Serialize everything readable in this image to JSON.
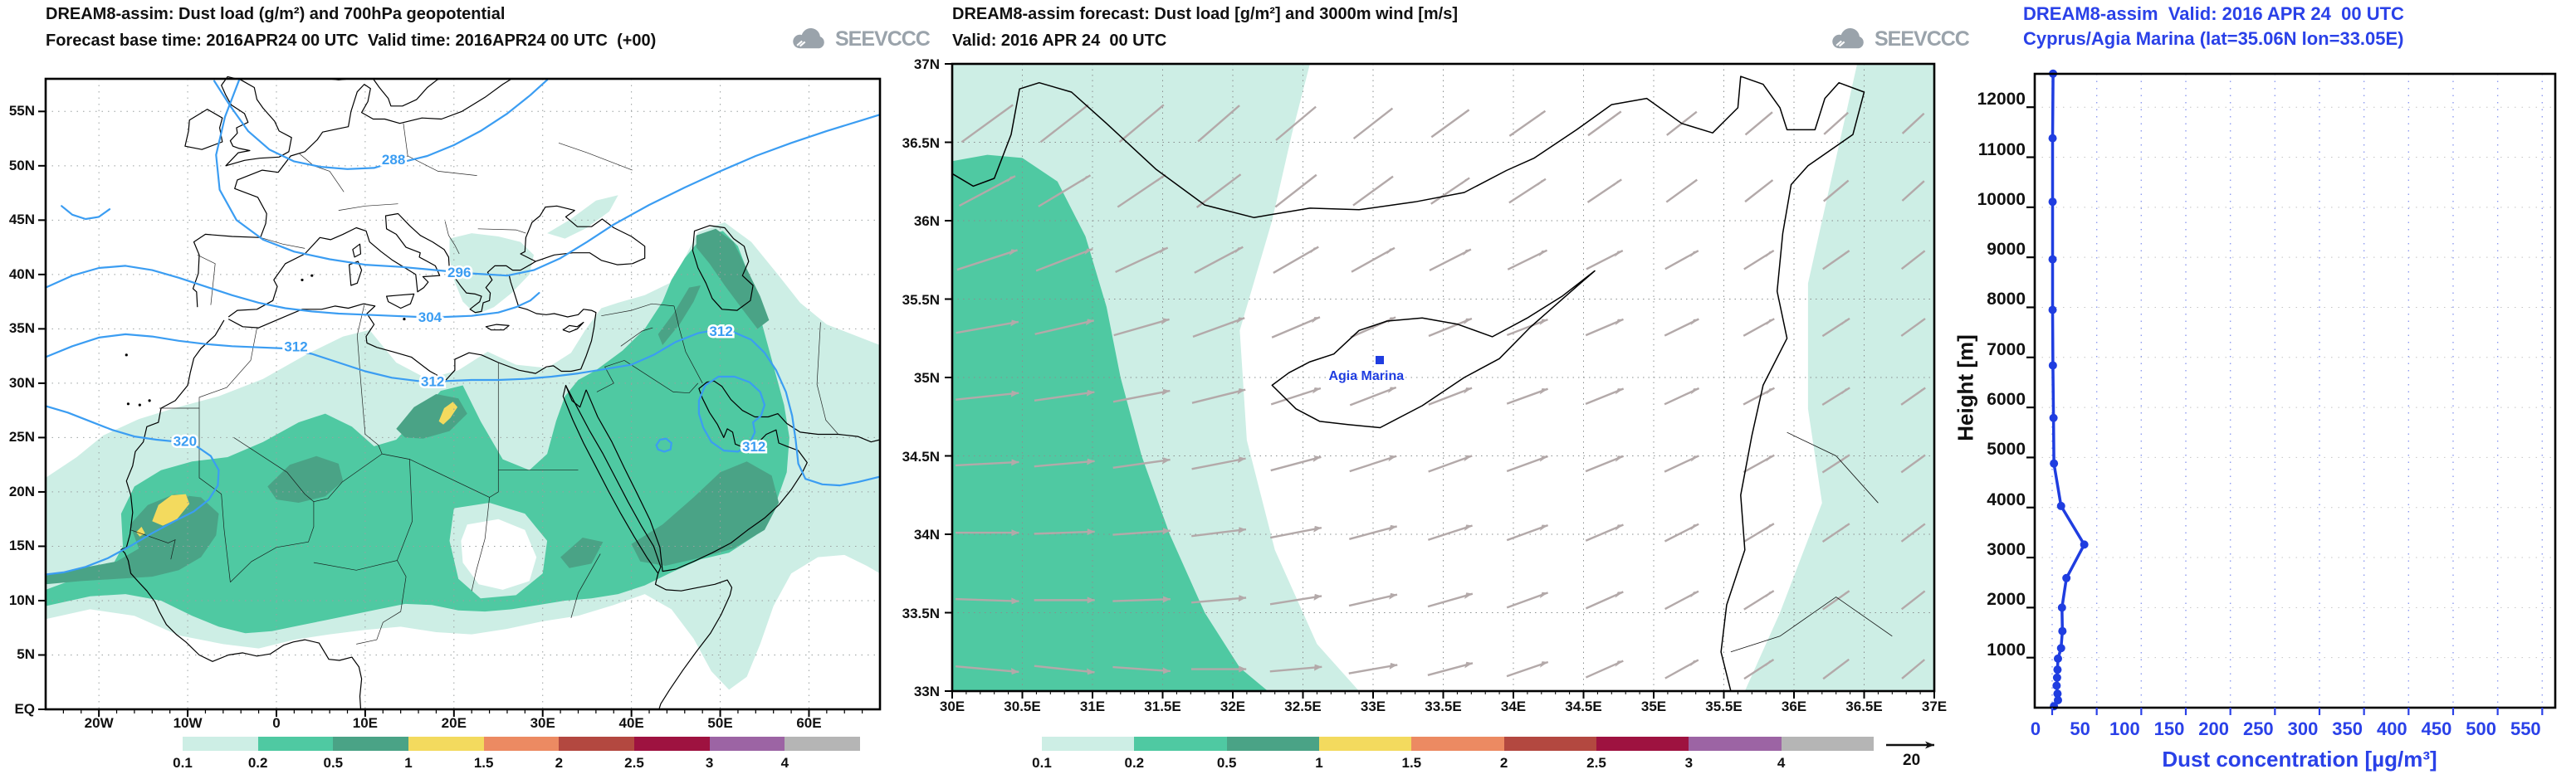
{
  "panels": {
    "left": {
      "title1": "DREAM8-assim: Dust load (g/m²) and 700hPa geopotential",
      "title2": "Forecast base time: 2016APR24 00 UTC  Valid time: 2016APR24 00 UTC  (+00)",
      "logo": "SEEVCCC",
      "x_ticks": [
        "20W",
        "10W",
        "0",
        "10E",
        "20E",
        "30E",
        "40E",
        "50E",
        "60E"
      ],
      "x_tick_lons": [
        -20,
        -10,
        0,
        10,
        20,
        30,
        40,
        50,
        60
      ],
      "y_ticks": [
        "EQ",
        "5N",
        "10N",
        "15N",
        "20N",
        "25N",
        "30N",
        "35N",
        "40N",
        "45N",
        "50N",
        "55N"
      ],
      "y_tick_lats": [
        0,
        5,
        10,
        15,
        20,
        25,
        30,
        35,
        40,
        45,
        50,
        55
      ],
      "contour_labels": [
        {
          "text": "288",
          "lon": 13.2,
          "lat": 50.6
        },
        {
          "text": "296",
          "lon": 20.6,
          "lat": 40.2
        },
        {
          "text": "304",
          "lon": 17.3,
          "lat": 36.1
        },
        {
          "text": "312",
          "lon": 2.2,
          "lat": 33.4
        },
        {
          "text": "312",
          "lon": 17.6,
          "lat": 30.2
        },
        {
          "text": "312",
          "lon": 50.1,
          "lat": 34.8
        },
        {
          "text": "312",
          "lon": 53.8,
          "lat": 24.2
        },
        {
          "text": "320",
          "lon": -10.3,
          "lat": 24.7
        }
      ],
      "colorbar": {
        "labels": [
          "0.1",
          "0.2",
          "0.5",
          "1",
          "1.5",
          "2",
          "2.5",
          "3",
          "4"
        ],
        "colors": [
          "#cdeee5",
          "#4fc9a2",
          "#4aa386",
          "#f3da5e",
          "#ec8a62",
          "#b34840",
          "#9e1240",
          "#9c64a4",
          "#b5b5b5"
        ]
      }
    },
    "middle": {
      "title1": "DREAM8-assim forecast: Dust load [g/m²] and 3000m wind [m/s]",
      "title2": "Valid: 2016 APR 24  00 UTC",
      "logo": "SEEVCCC",
      "x_ticks": [
        "30E",
        "30.5E",
        "31E",
        "31.5E",
        "32E",
        "32.5E",
        "33E",
        "33.5E",
        "34E",
        "34.5E",
        "35E",
        "35.5E",
        "36E",
        "36.5E",
        "37E"
      ],
      "x_tick_lons": [
        30,
        30.5,
        31,
        31.5,
        32,
        32.5,
        33,
        33.5,
        34,
        34.5,
        35,
        35.5,
        36,
        36.5,
        37
      ],
      "y_ticks": [
        "33N",
        "33.5N",
        "34N",
        "34.5N",
        "35N",
        "35.5N",
        "36N",
        "36.5N",
        "37N"
      ],
      "y_tick_lats": [
        33,
        33.5,
        34,
        34.5,
        35,
        35.5,
        36,
        36.5,
        37
      ],
      "station": {
        "label": "Agia Marina",
        "lon": 33.05,
        "lat": 35.06
      },
      "wind_ref": "20",
      "wind_lons": [
        30.25,
        30.8,
        31.35,
        31.9,
        32.45,
        33.0,
        33.55,
        34.1,
        34.65,
        35.2,
        35.75,
        36.3,
        36.85
      ],
      "wind_rows": [
        {
          "lat": 36.62,
          "angles": [
            36,
            38,
            40,
            41,
            40,
            38,
            36,
            35,
            36,
            38,
            40,
            42,
            43
          ]
        },
        {
          "lat": 36.19,
          "angles": [
            28,
            31,
            34,
            37,
            38,
            36,
            34,
            33,
            34,
            36,
            38,
            40,
            42
          ]
        },
        {
          "lat": 35.75,
          "angles": [
            18,
            21,
            25,
            28,
            30,
            29,
            27,
            26,
            27,
            29,
            32,
            35,
            38
          ]
        },
        {
          "lat": 35.32,
          "angles": [
            10,
            13,
            16,
            20,
            23,
            24,
            22,
            21,
            23,
            26,
            29,
            33,
            36
          ]
        },
        {
          "lat": 34.88,
          "angles": [
            6,
            8,
            11,
            14,
            18,
            21,
            21,
            20,
            22,
            25,
            28,
            32,
            35
          ]
        },
        {
          "lat": 34.45,
          "angles": [
            3,
            5,
            8,
            11,
            15,
            18,
            20,
            20,
            22,
            25,
            29,
            33,
            36
          ]
        },
        {
          "lat": 34.01,
          "angles": [
            0,
            2,
            4,
            7,
            11,
            15,
            18,
            20,
            23,
            27,
            31,
            34,
            37
          ]
        },
        {
          "lat": 33.58,
          "angles": [
            -2,
            0,
            2,
            5,
            9,
            13,
            16,
            20,
            24,
            28,
            32,
            35,
            38
          ]
        },
        {
          "lat": 33.14,
          "angles": [
            -5,
            -6,
            -4,
            0,
            5,
            10,
            15,
            19,
            24,
            29,
            33,
            37,
            40
          ]
        }
      ],
      "colorbar": {
        "labels": [
          "0.1",
          "0.2",
          "0.5",
          "1",
          "1.5",
          "2",
          "2.5",
          "3",
          "4"
        ],
        "colors": [
          "#cdeee5",
          "#4fc9a2",
          "#4aa386",
          "#f3da5e",
          "#ec8a62",
          "#b34840",
          "#9e1240",
          "#9c64a4",
          "#b5b5b5"
        ]
      }
    },
    "right": {
      "title1": "DREAM8-assim  Valid: 2016 APR 24  00 UTC",
      "title2": "Cyprus/Agia Marina (lat=35.06N lon=33.05E)",
      "ylabel": "Height [m]",
      "xlabel": "Dust concentration [µg/m³]",
      "x_ticks": [
        "0",
        "50",
        "100",
        "150",
        "200",
        "250",
        "300",
        "350",
        "400",
        "450",
        "500",
        "550"
      ],
      "x_tick_vals": [
        0,
        50,
        100,
        150,
        200,
        250,
        300,
        350,
        400,
        450,
        500,
        550
      ],
      "y_ticks": [
        "1000",
        "2000",
        "3000",
        "4000",
        "5000",
        "6000",
        "7000",
        "8000",
        "9000",
        "10000",
        "11000",
        "12000"
      ],
      "y_tick_vals": [
        1000,
        2000,
        3000,
        4000,
        5000,
        6000,
        7000,
        8000,
        9000,
        10000,
        11000,
        12000
      ]
    }
  },
  "chart_data": [
    {
      "type": "map",
      "title": "DREAM8-assim: Dust load (g/m²) and 700hPa geopotential",
      "region": "Europe / North Africa / Middle East",
      "lon_range": [
        -26,
        68
      ],
      "lat_range": [
        0,
        58
      ],
      "shading_variable": "dust load (g/m²)",
      "shading_levels": [
        0.1,
        0.2,
        0.5,
        1,
        1.5,
        2,
        2.5,
        3,
        4
      ],
      "contour_variable": "700hPa geopotential",
      "contour_values": [
        288,
        296,
        304,
        312,
        320
      ],
      "grid": "dotted, 10 deg lon x 5 deg lat"
    },
    {
      "type": "map",
      "title": "DREAM8-assim forecast: Dust load [g/m²] and 3000m wind [m/s]",
      "region": "Cyprus / Eastern Mediterranean",
      "lon_range": [
        30,
        37
      ],
      "lat_range": [
        33,
        37
      ],
      "shading_variable": "dust load [g/m²]",
      "shading_levels": [
        0.1,
        0.2,
        0.5,
        1,
        1.5,
        2,
        2.5,
        3,
        4
      ],
      "wind_reference_ms": 20,
      "station": "Agia Marina"
    },
    {
      "type": "line",
      "title": "DREAM8-assim Valid: 2016 APR 24 00 UTC, Cyprus/Agia Marina",
      "xlabel": "Dust concentration [µg/m³]",
      "ylabel": "Height [m]",
      "xlim": [
        0,
        550
      ],
      "ylim": [
        0,
        12700
      ],
      "legend": "none",
      "grid": "dotted vertical every 50 µg/m³, dotted horizontal every 1000 m",
      "points_conc_height": [
        [
          1,
          12670
        ],
        [
          0.5,
          11380
        ],
        [
          0.5,
          10110
        ],
        [
          0.5,
          8960
        ],
        [
          0.5,
          7950
        ],
        [
          0.8,
          6840
        ],
        [
          1.5,
          5790
        ],
        [
          2,
          4880
        ],
        [
          10,
          4030
        ],
        [
          36,
          3260
        ],
        [
          16,
          2590
        ],
        [
          11,
          2000
        ],
        [
          11.5,
          1530
        ],
        [
          10,
          1190
        ],
        [
          6.5,
          980
        ],
        [
          6,
          760
        ],
        [
          5.5,
          600
        ],
        [
          5,
          440
        ],
        [
          6,
          280
        ],
        [
          6.5,
          150
        ],
        [
          2,
          30
        ]
      ]
    }
  ]
}
